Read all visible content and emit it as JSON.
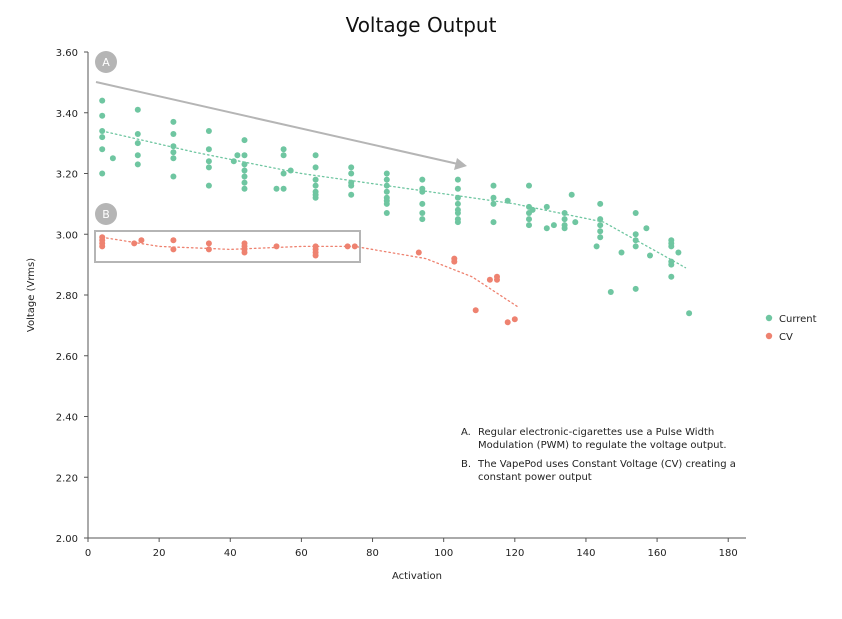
{
  "chart_data": {
    "type": "scatter",
    "title": "Voltage Output",
    "xlabel": "Activation",
    "ylabel": "Voltage (Vrms)",
    "xlim": [
      0,
      185
    ],
    "ylim": [
      2.0,
      3.6
    ],
    "x_ticks": [
      "0",
      "20",
      "40",
      "60",
      "80",
      "100",
      "120",
      "140",
      "160",
      "180"
    ],
    "y_ticks": [
      "2.00",
      "2.20",
      "2.40",
      "2.60",
      "2.80",
      "3.00",
      "3.20",
      "3.40",
      "3.60"
    ],
    "grid": false,
    "legend_position": "right",
    "colors": {
      "current": "#6fc6a1",
      "cv": "#ee8270",
      "arrow": "#b5b5b5",
      "box": "#b5b5b5",
      "badge": "#b5b5b5"
    },
    "series": [
      {
        "name": "Current",
        "color": "#6fc6a1",
        "points": [
          [
            4,
            3.44
          ],
          [
            4,
            3.39
          ],
          [
            4,
            3.34
          ],
          [
            4,
            3.32
          ],
          [
            4,
            3.28
          ],
          [
            4,
            3.2
          ],
          [
            7,
            3.25
          ],
          [
            14,
            3.41
          ],
          [
            14,
            3.33
          ],
          [
            14,
            3.3
          ],
          [
            14,
            3.26
          ],
          [
            14,
            3.23
          ],
          [
            24,
            3.37
          ],
          [
            24,
            3.33
          ],
          [
            24,
            3.29
          ],
          [
            24,
            3.27
          ],
          [
            24,
            3.25
          ],
          [
            24,
            3.19
          ],
          [
            34,
            3.34
          ],
          [
            34,
            3.28
          ],
          [
            34,
            3.24
          ],
          [
            34,
            3.22
          ],
          [
            34,
            3.16
          ],
          [
            41,
            3.24
          ],
          [
            42,
            3.26
          ],
          [
            44,
            3.31
          ],
          [
            44,
            3.26
          ],
          [
            44,
            3.23
          ],
          [
            44,
            3.21
          ],
          [
            44,
            3.19
          ],
          [
            44,
            3.17
          ],
          [
            44,
            3.15
          ],
          [
            53,
            3.15
          ],
          [
            55,
            3.28
          ],
          [
            55,
            3.26
          ],
          [
            55,
            3.2
          ],
          [
            55,
            3.15
          ],
          [
            57,
            3.21
          ],
          [
            64,
            3.26
          ],
          [
            64,
            3.22
          ],
          [
            64,
            3.18
          ],
          [
            64,
            3.16
          ],
          [
            64,
            3.14
          ],
          [
            64,
            3.13
          ],
          [
            64,
            3.12
          ],
          [
            74,
            3.22
          ],
          [
            74,
            3.2
          ],
          [
            74,
            3.17
          ],
          [
            74,
            3.16
          ],
          [
            74,
            3.13
          ],
          [
            84,
            3.2
          ],
          [
            84,
            3.18
          ],
          [
            84,
            3.16
          ],
          [
            84,
            3.14
          ],
          [
            84,
            3.12
          ],
          [
            84,
            3.11
          ],
          [
            84,
            3.1
          ],
          [
            84,
            3.07
          ],
          [
            94,
            3.18
          ],
          [
            94,
            3.15
          ],
          [
            94,
            3.14
          ],
          [
            94,
            3.1
          ],
          [
            94,
            3.07
          ],
          [
            94,
            3.05
          ],
          [
            104,
            3.18
          ],
          [
            104,
            3.15
          ],
          [
            104,
            3.12
          ],
          [
            104,
            3.1
          ],
          [
            104,
            3.08
          ],
          [
            104,
            3.07
          ],
          [
            104,
            3.05
          ],
          [
            104,
            3.04
          ],
          [
            114,
            3.16
          ],
          [
            114,
            3.12
          ],
          [
            114,
            3.1
          ],
          [
            114,
            3.04
          ],
          [
            118,
            3.11
          ],
          [
            124,
            3.16
          ],
          [
            124,
            3.09
          ],
          [
            124,
            3.07
          ],
          [
            124,
            3.05
          ],
          [
            124,
            3.03
          ],
          [
            125,
            3.08
          ],
          [
            129,
            3.09
          ],
          [
            129,
            3.02
          ],
          [
            131,
            3.03
          ],
          [
            134,
            3.07
          ],
          [
            134,
            3.05
          ],
          [
            134,
            3.03
          ],
          [
            134,
            3.02
          ],
          [
            136,
            3.13
          ],
          [
            137,
            3.04
          ],
          [
            143,
            2.96
          ],
          [
            144,
            3.1
          ],
          [
            144,
            3.05
          ],
          [
            144,
            3.03
          ],
          [
            144,
            3.01
          ],
          [
            144,
            2.99
          ],
          [
            147,
            2.81
          ],
          [
            150,
            2.94
          ],
          [
            154,
            3.07
          ],
          [
            154,
            3.0
          ],
          [
            154,
            2.98
          ],
          [
            154,
            2.96
          ],
          [
            154,
            2.82
          ],
          [
            157,
            3.02
          ],
          [
            158,
            2.93
          ],
          [
            164,
            2.98
          ],
          [
            164,
            2.97
          ],
          [
            164,
            2.96
          ],
          [
            164,
            2.91
          ],
          [
            164,
            2.9
          ],
          [
            164,
            2.86
          ],
          [
            166,
            2.94
          ],
          [
            169,
            2.74
          ]
        ],
        "trend": [
          [
            4,
            3.34
          ],
          [
            30,
            3.27
          ],
          [
            60,
            3.2
          ],
          [
            90,
            3.15
          ],
          [
            120,
            3.1
          ],
          [
            145,
            3.04
          ],
          [
            168,
            2.89
          ]
        ]
      },
      {
        "name": "CV",
        "color": "#ee8270",
        "points": [
          [
            4,
            2.99
          ],
          [
            4,
            2.98
          ],
          [
            4,
            2.97
          ],
          [
            4,
            2.96
          ],
          [
            13,
            2.97
          ],
          [
            15,
            2.98
          ],
          [
            24,
            2.98
          ],
          [
            24,
            2.95
          ],
          [
            34,
            2.97
          ],
          [
            34,
            2.95
          ],
          [
            44,
            2.97
          ],
          [
            44,
            2.96
          ],
          [
            44,
            2.95
          ],
          [
            44,
            2.94
          ],
          [
            53,
            2.96
          ],
          [
            64,
            2.96
          ],
          [
            64,
            2.95
          ],
          [
            64,
            2.94
          ],
          [
            64,
            2.93
          ],
          [
            73,
            2.96
          ],
          [
            75,
            2.96
          ],
          [
            93,
            2.94
          ],
          [
            103,
            2.92
          ],
          [
            103,
            2.91
          ],
          [
            109,
            2.75
          ],
          [
            113,
            2.85
          ],
          [
            115,
            2.86
          ],
          [
            115,
            2.85
          ],
          [
            118,
            2.71
          ],
          [
            120,
            2.72
          ]
        ],
        "trend": [
          [
            4,
            2.99
          ],
          [
            20,
            2.96
          ],
          [
            40,
            2.95
          ],
          [
            60,
            2.96
          ],
          [
            75,
            2.96
          ],
          [
            95,
            2.92
          ],
          [
            108,
            2.86
          ],
          [
            121,
            2.76
          ]
        ]
      }
    ],
    "annotations": {
      "badge_a": "A",
      "badge_b": "B",
      "note_a_marker": "A.",
      "note_a_line1": "Regular electronic-cigarettes use a Pulse Width",
      "note_a_line2": "Modulation (PWM) to regulate the voltage output.",
      "note_b_marker": "B.",
      "note_b_line1": "The VapePod uses Constant Voltage (CV) creating a",
      "note_b_line2": "constant power output"
    }
  }
}
